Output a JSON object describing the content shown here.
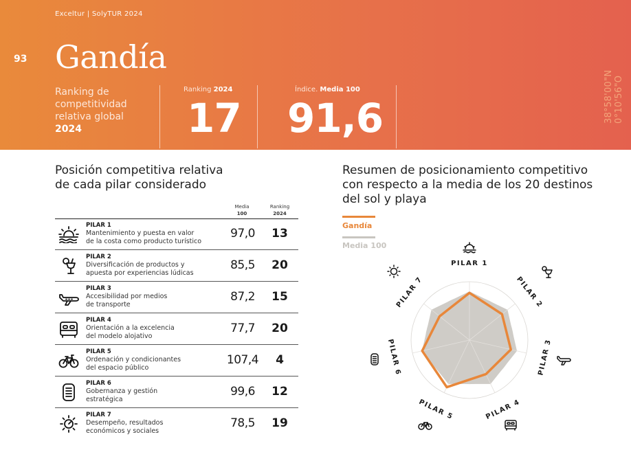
{
  "header": {
    "brand": "Exceltur  |  SolyTUR 2024",
    "page_number": "93",
    "city": "Gandía",
    "ranking_desc": "Ranking de competitividad relativa global",
    "ranking_desc_year": "2024",
    "ranking_label": "Ranking ",
    "ranking_label_bold": "2024",
    "ranking_value": "17",
    "index_label": "Índice. ",
    "index_label_bold": "Media 100",
    "index_value": "91,6",
    "coordinates": "38°58'00\"N 0°10'56\"O",
    "gradient_start": "#e98a3b",
    "gradient_end": "#e4614e"
  },
  "left": {
    "title_line1": "Posición competitiva relativa",
    "title_line2": "de cada pilar considerado",
    "col_media_1": "Media",
    "col_media_2": "100",
    "col_rank_1": "Ranking",
    "col_rank_2": "2024",
    "pillars": [
      {
        "title": "PILAR 1",
        "desc1": "Mantenimiento y puesta en valor",
        "desc2": "de la costa como producto turístico",
        "value": "97,0",
        "rank": "13",
        "icon": "sunset-icon"
      },
      {
        "title": "PILAR 2",
        "desc1": "Diversificación de productos y",
        "desc2": "apuesta por experiencias lúdicas",
        "value": "85,5",
        "rank": "20",
        "icon": "cocktail-icon"
      },
      {
        "title": "PILAR 3",
        "desc1": "Accesibilidad por medios",
        "desc2": "de transporte",
        "value": "87,2",
        "rank": "15",
        "icon": "airplane-icon"
      },
      {
        "title": "PILAR 4",
        "desc1": "Orientación a la excelencia",
        "desc2": "del modelo alojativo",
        "value": "77,7",
        "rank": "20",
        "icon": "bed-icon"
      },
      {
        "title": "PILAR 5",
        "desc1": "Ordenación y condicionantes",
        "desc2": "del espacio público",
        "value": "107,4",
        "rank": "4",
        "icon": "bicycle-icon"
      },
      {
        "title": "PILAR 6",
        "desc1": "Gobernanza y gestión",
        "desc2": "estratégica",
        "value": "99,6",
        "rank": "12",
        "icon": "document-icon"
      },
      {
        "title": "PILAR 7",
        "desc1": "Desempeño, resultados",
        "desc2": "económicos y sociales",
        "value": "78,5",
        "rank": "19",
        "icon": "sun-icon"
      }
    ]
  },
  "right": {
    "title_line1": "Resumen de posicionamiento competitivo",
    "title_line2": "con respecto a la media de los 20 destinos",
    "title_line3": "del sol y playa",
    "legend_city": "Gandía",
    "legend_avg": "Media 100",
    "city_color": "#e8873a",
    "avg_color": "#c8c5c0"
  },
  "chart_data": {
    "type": "radar",
    "axes": [
      "PILAR 1",
      "PILAR 2",
      "PILAR 3",
      "PILAR 4",
      "PILAR 5",
      "PILAR 6",
      "PILAR 7"
    ],
    "series": [
      {
        "name": "Gandía",
        "values": [
          97.0,
          85.5,
          87.2,
          77.7,
          107.4,
          99.6,
          78.5
        ]
      },
      {
        "name": "Media 100",
        "values": [
          100,
          100,
          100,
          100,
          100,
          100,
          100
        ]
      }
    ]
  }
}
